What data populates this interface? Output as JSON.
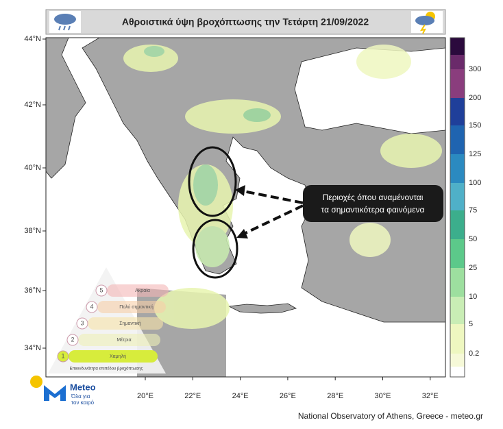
{
  "header": {
    "title": "Αθροιστικά ύψη βροχόπτωσης την Τετάρτη 21/09/2022"
  },
  "map": {
    "lat_labels": [
      "44°N",
      "42°N",
      "40°N",
      "38°N",
      "36°N",
      "34°N"
    ],
    "lon_labels": [
      "20°E",
      "22°E",
      "24°E",
      "26°E",
      "28°E",
      "30°E",
      "32°E"
    ]
  },
  "colorbar": {
    "labels": [
      "300",
      "200",
      "150",
      "125",
      "100",
      "75",
      "50",
      "25",
      "10",
      "5",
      "0.2"
    ]
  },
  "annotation": {
    "lines": [
      "Περιοχές όπου αναμένονται",
      "τα σημαντικότερα φαινόμενα"
    ]
  },
  "risk_legend": {
    "levels": [
      {
        "number": "5",
        "label": "Ακραία"
      },
      {
        "number": "4",
        "label": "Πολύ σημαντική"
      },
      {
        "number": "3",
        "label": "Σημαντική"
      },
      {
        "number": "2",
        "label": "Μέτρια"
      },
      {
        "number": "1",
        "label": "Χαμηλή"
      }
    ],
    "caption": "Επικινδυνότητα επιπέδου βροχόπτωσης"
  },
  "logo": {
    "name": "Meteo",
    "tagline_1": "Όλα για",
    "tagline_2": "τον καιρό"
  },
  "credit": "National Observatory of Athens, Greece - meteo.gr"
}
